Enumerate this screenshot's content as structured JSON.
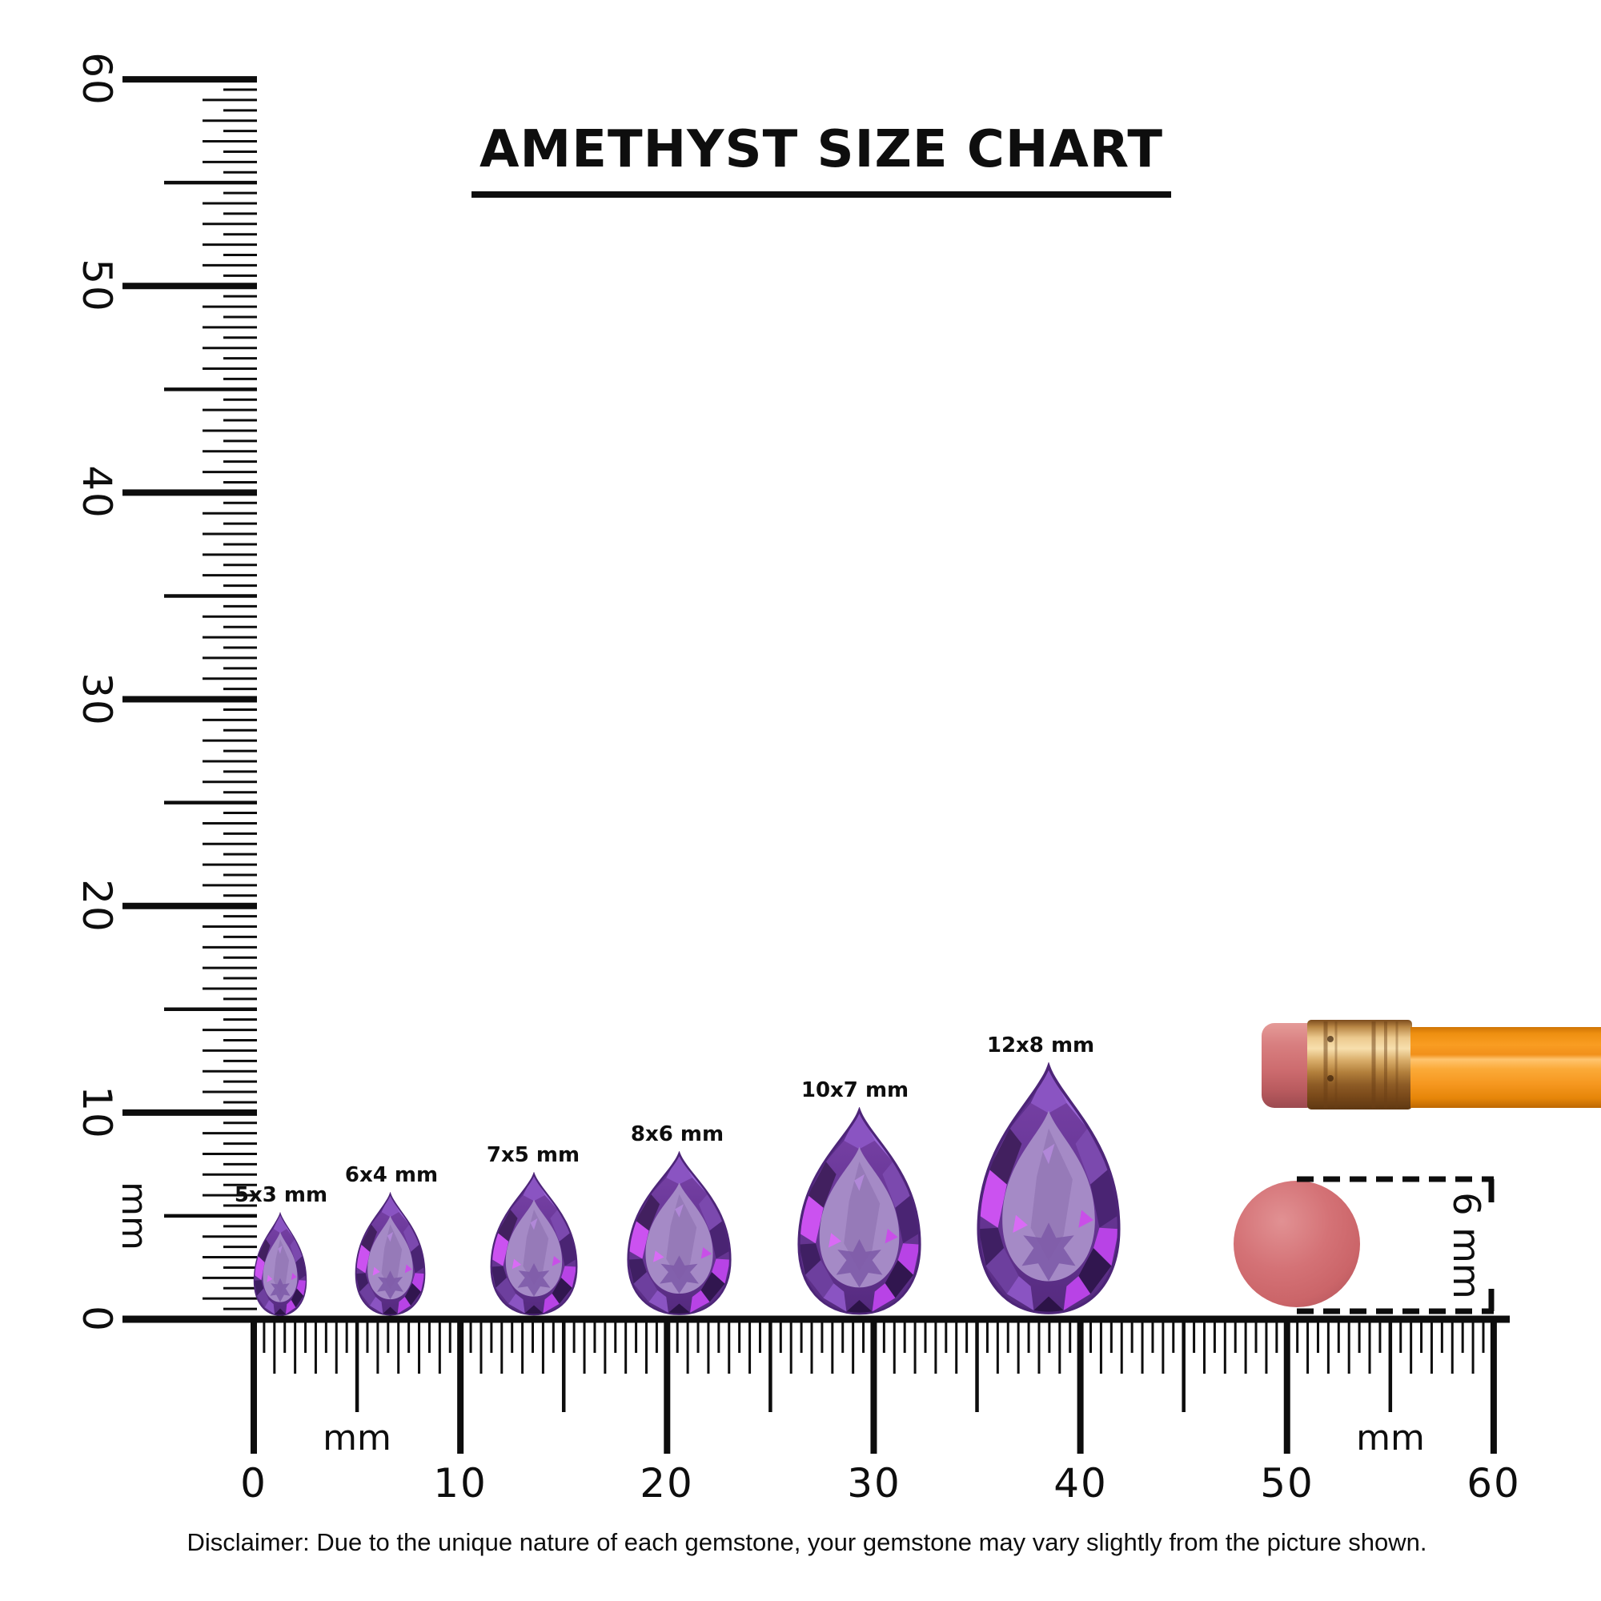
{
  "title": "AMETHYST SIZE CHART",
  "vertical_ruler": {
    "unit_label": "mm",
    "labels": [
      "0",
      "10",
      "20",
      "30",
      "40",
      "50",
      "60"
    ]
  },
  "horizontal_ruler": {
    "unit_label_left": "mm",
    "unit_label_right": "mm",
    "labels": [
      "0",
      "10",
      "20",
      "30",
      "40",
      "50",
      "60"
    ]
  },
  "gems": [
    {
      "label": "5x3 mm",
      "length_mm": 5,
      "width_mm": 3
    },
    {
      "label": "6x4 mm",
      "length_mm": 6,
      "width_mm": 4
    },
    {
      "label": "7x5 mm",
      "length_mm": 7,
      "width_mm": 5
    },
    {
      "label": "8x6 mm",
      "length_mm": 8,
      "width_mm": 6
    },
    {
      "label": "10x7 mm",
      "length_mm": 10,
      "width_mm": 7
    },
    {
      "label": "12x8 mm",
      "length_mm": 12,
      "width_mm": 8
    }
  ],
  "scale_reference": {
    "eraser_circle_label": "6 mm",
    "eraser_circle_diameter_mm": 6
  },
  "disclaimer": "Disclaimer: Due to the unique nature of each gemstone, your gemstone may vary slightly from the picture shown.",
  "colors": {
    "ink": "#0d0d0d",
    "amethyst_dark": "#31164f",
    "amethyst_mid": "#7b49ae",
    "amethyst_light": "#a58ac6",
    "amethyst_glint": "#cb52f0",
    "pencil_body_orange": "#f89b1e",
    "pencil_ferrule_gold": "#e3b974",
    "pencil_eraser_pink": "#cd6c6f"
  }
}
